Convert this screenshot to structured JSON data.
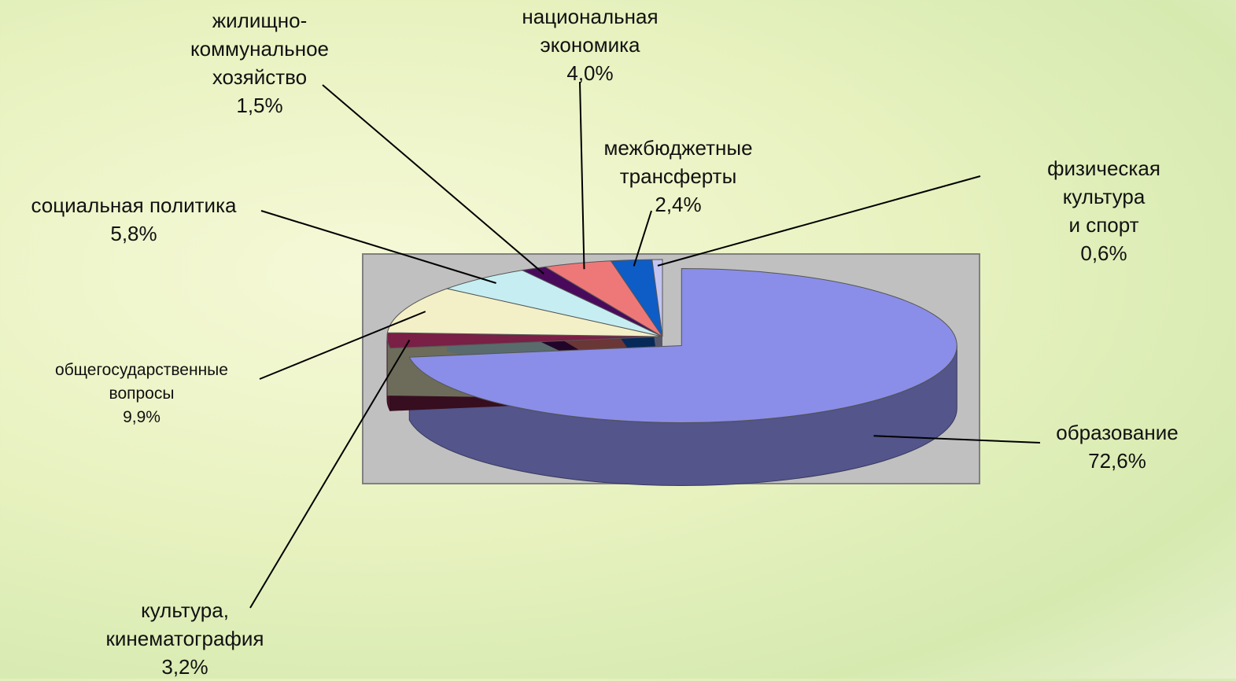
{
  "chart_data": {
    "type": "pie",
    "categories": [
      "образование",
      "культура,\nкинематография",
      "общегосударственные\nвопросы",
      "социальная политика",
      "жилищно-\nкоммунальное\nхозяйство",
      "национальная\nэкономика",
      "межбюджетные\nтрансферты",
      "физическая культура\nи спорт"
    ],
    "values": [
      72.6,
      3.2,
      9.9,
      5.8,
      1.5,
      4.0,
      2.4,
      0.6
    ],
    "value_labels": [
      "72,6%",
      "3,2%",
      "9,9%",
      "5,8%",
      "1,5%",
      "4,0%",
      "2,4%",
      "0,6%"
    ],
    "colors": [
      "#8a8ee8",
      "#7a1f45",
      "#f3f0c8",
      "#c6eef2",
      "#4a0a5c",
      "#ee7878",
      "#0e5cc6",
      "#c4c4f2"
    ]
  }
}
